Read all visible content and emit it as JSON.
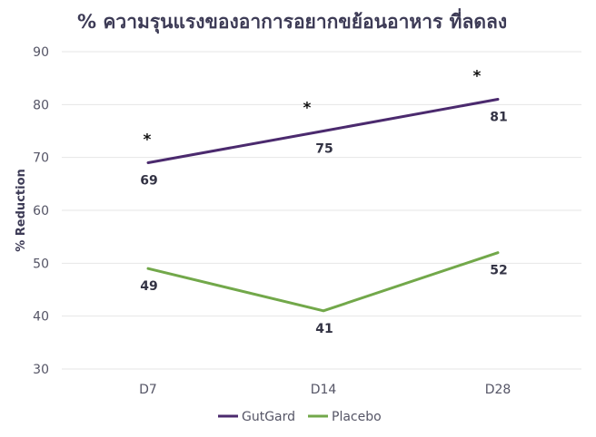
{
  "chart_data": {
    "type": "line",
    "title": "% ความรุนแรงของอาการอยากขย้อนอาหาร ที่ลดลง",
    "xlabel": "",
    "ylabel": "% Reduction",
    "categories": [
      "D7",
      "D14",
      "D28"
    ],
    "ylim": [
      30,
      90
    ],
    "yticks": [
      30,
      40,
      50,
      60,
      70,
      80,
      90
    ],
    "grid": true,
    "legend_position": "bottom",
    "series": [
      {
        "name": "GutGard",
        "values": [
          69,
          75,
          81
        ],
        "labels": [
          "69",
          "75",
          "81"
        ],
        "color": "#4b2a6e",
        "significance": [
          "*",
          "*",
          "*"
        ]
      },
      {
        "name": "Placebo",
        "values": [
          49,
          41,
          52
        ],
        "labels": [
          "49",
          "41",
          "52"
        ],
        "color": "#72a84a"
      }
    ]
  }
}
